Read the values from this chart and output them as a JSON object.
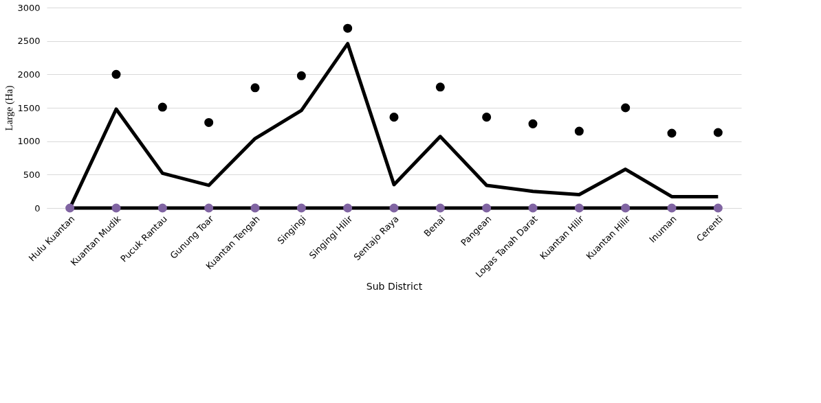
{
  "chart_data": {
    "type": "line",
    "xlabel": "Sub District",
    "ylabel": "Large (Ha)",
    "categories": [
      "Hulu Kuantan",
      "Kuantan Mudik",
      "Pucuk Rantau",
      "Gunung Toar",
      "Kuantan Tengah",
      "Singingi",
      "Singingi Hilir",
      "Sentajo Raya",
      "Benai",
      "Pangean",
      "Logas Tanah Darat",
      "Kuantan Hilir",
      "Kuantan Hilir",
      "Inuman",
      "Cerenti"
    ],
    "series": [
      {
        "color": "#000000",
        "values": [
          0,
          1480,
          520,
          340,
          1040,
          1460,
          2460,
          350,
          1070,
          340,
          250,
          200,
          580,
          170,
          170
        ]
      },
      {
        "type": "scatter",
        "color": "#000000",
        "values": [
          null,
          2000,
          1510,
          1280,
          1800,
          1980,
          2690,
          1360,
          1810,
          1360,
          1260,
          1150,
          1500,
          1120,
          1130
        ]
      },
      {
        "color": "#000000",
        "values": [
          0,
          0,
          0,
          0,
          0,
          0,
          0,
          0,
          0,
          0,
          0,
          0,
          0,
          0,
          0
        ]
      },
      {
        "type": "scatter",
        "color": "#8064a2",
        "values": [
          0,
          0,
          0,
          0,
          0,
          0,
          0,
          0,
          0,
          0,
          0,
          0,
          0,
          0,
          0
        ]
      }
    ],
    "ylim": [
      0,
      3000
    ],
    "yticks": [
      0,
      500,
      1000,
      1500,
      2000,
      2500,
      3000
    ],
    "grid": "y"
  }
}
